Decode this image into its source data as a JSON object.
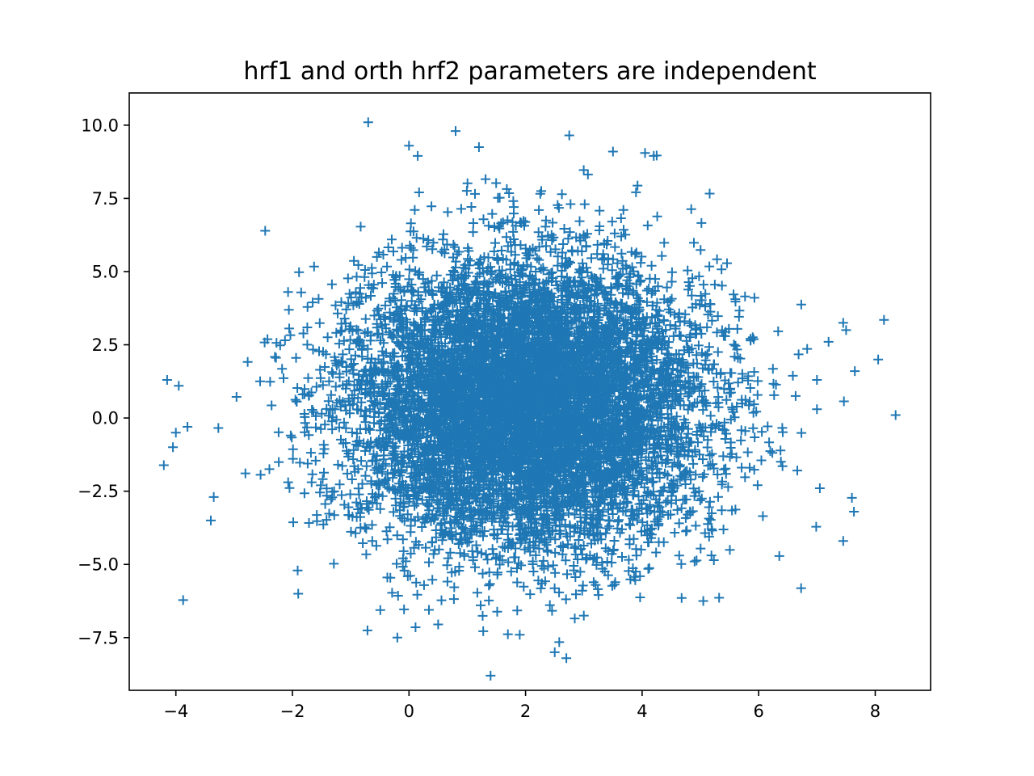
{
  "chart_data": {
    "type": "scatter",
    "title": "hrf1 and orth hrf2 parameters are independent",
    "xlabel": "",
    "ylabel": "",
    "xlim": [
      -4.8,
      8.95
    ],
    "ylim": [
      -9.3,
      11.1
    ],
    "grid": false,
    "legend": "none",
    "marker": "+",
    "color": "#1f77b4",
    "x_ticks": [
      -4,
      -2,
      0,
      2,
      4,
      6,
      8
    ],
    "x_tick_labels": [
      "−4",
      "−2",
      "0",
      "2",
      "4",
      "6",
      "8"
    ],
    "y_ticks": [
      -7.5,
      -5.0,
      -2.5,
      0.0,
      2.5,
      5.0,
      7.5,
      10.0
    ],
    "y_tick_labels": [
      "−7.5",
      "−5.0",
      "−2.5",
      "0.0",
      "2.5",
      "5.0",
      "7.5",
      "10.0"
    ],
    "distribution": {
      "n_points": 9000,
      "x_mean": 2.0,
      "x_std": 1.5,
      "y_mean": 0.5,
      "y_std": 2.4,
      "correlation": 0.0
    },
    "outliers": {
      "x": [
        -0.7,
        0.8,
        1.2,
        2.75,
        0.0,
        0.15,
        3.5,
        4.05,
        4.2,
        8.35,
        8.15,
        8.05,
        7.45,
        7.5,
        7.2,
        7.65,
        7.0,
        7.0,
        -4.15,
        -4.05,
        -4.0,
        -3.95,
        -3.8,
        1.4,
        2.7,
        2.5,
        1.9,
        -0.2,
        0.5,
        5.05,
        7.45,
        7.05,
        -1.9,
        -3.35,
        -3.4,
        3.0,
        4.9
      ],
      "y": [
        10.1,
        9.8,
        9.25,
        9.65,
        9.3,
        8.95,
        9.1,
        9.05,
        8.95,
        0.1,
        3.35,
        2.0,
        3.25,
        3.0,
        2.6,
        1.6,
        1.3,
        0.3,
        1.3,
        -1.0,
        -0.5,
        1.1,
        -0.3,
        -8.8,
        -8.2,
        -8.0,
        -7.4,
        -7.5,
        -7.05,
        -6.25,
        -4.2,
        -2.4,
        -6.0,
        -2.7,
        -3.5,
        -6.75,
        -4.9
      ]
    }
  }
}
